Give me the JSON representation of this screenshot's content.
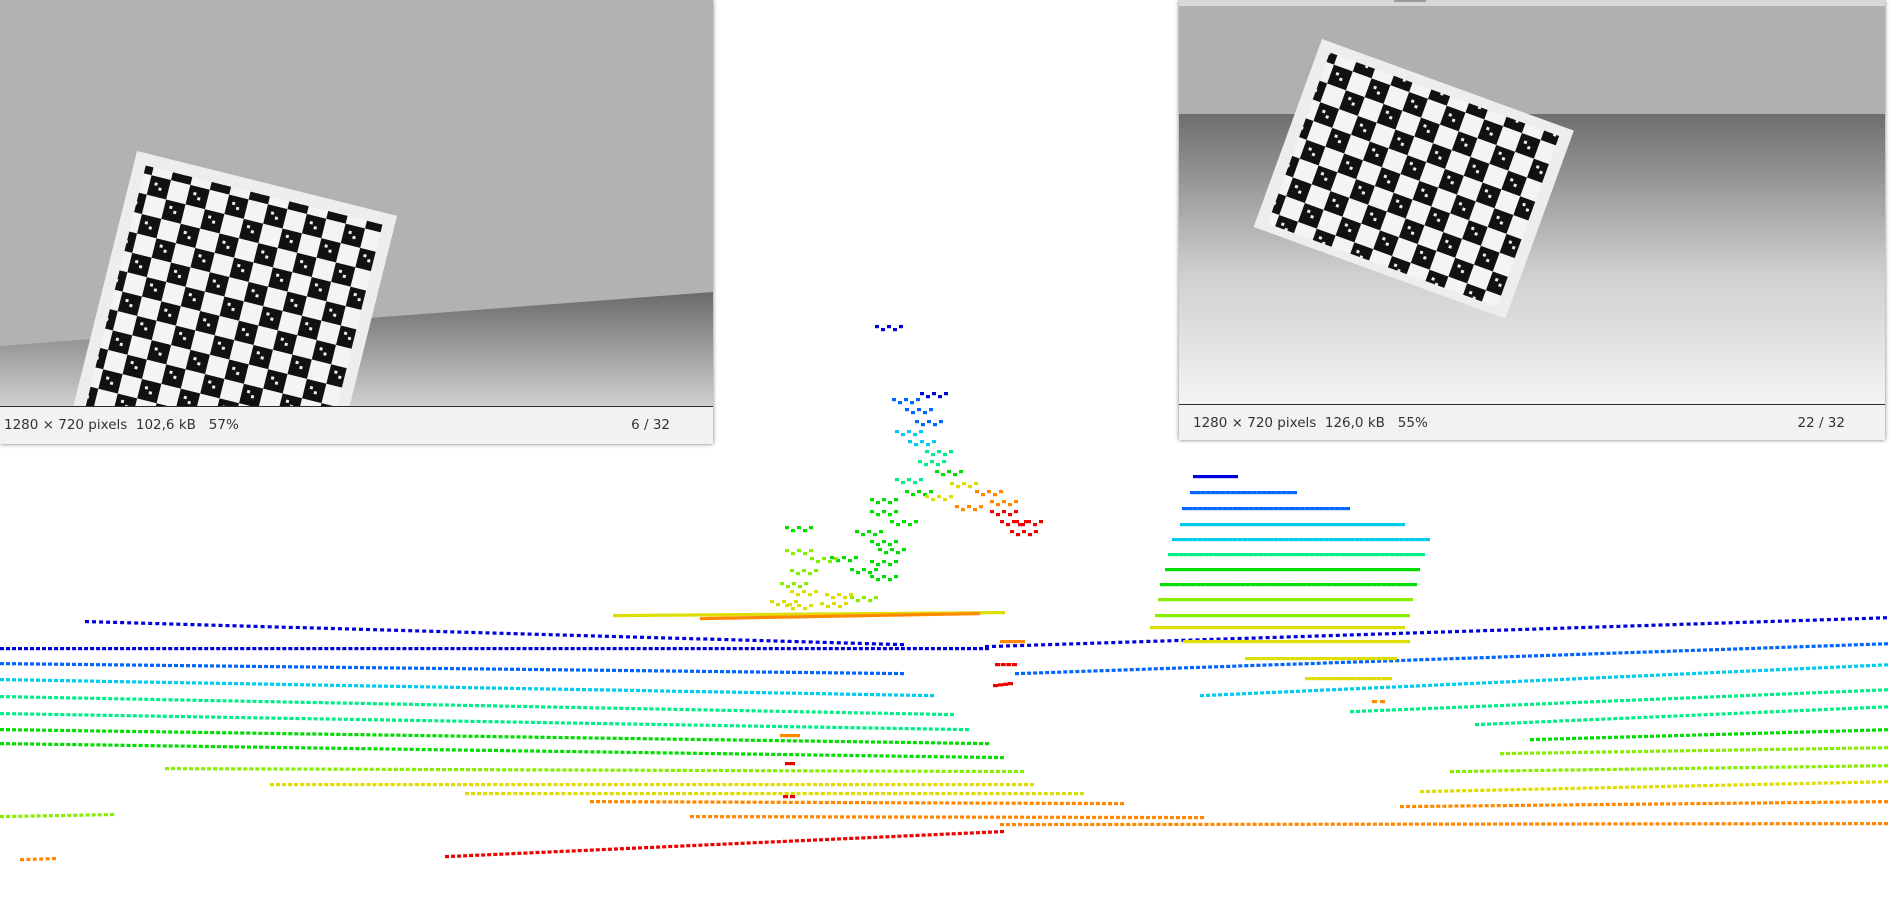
{
  "viewer_left": {
    "image_info": "1280 × 720 pixels  102,6 kB   57%",
    "counter": "6 / 32"
  },
  "viewer_right": {
    "image_info": "1280 × 720 pixels  126,0 kB   55%",
    "counter": "22 / 32"
  },
  "point_cloud": {
    "colormap": [
      "#0000dd",
      "#0066ff",
      "#00ccee",
      "#00ee88",
      "#00dd00",
      "#88ee00",
      "#dddd00",
      "#ff8800",
      "#ee0000"
    ]
  }
}
